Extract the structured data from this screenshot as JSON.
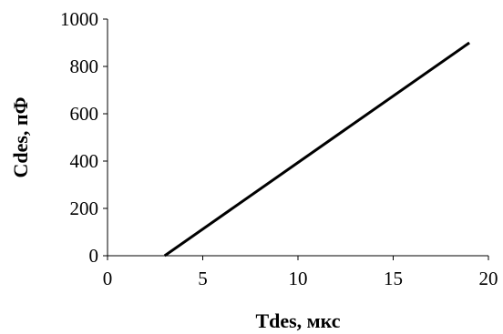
{
  "chart_data": {
    "type": "line",
    "xlabel": "Tdes, мкс",
    "ylabel": "Cdes, пФ",
    "xlim": [
      0,
      20
    ],
    "ylim": [
      0,
      1000
    ],
    "xticks": [
      0,
      5,
      10,
      15,
      20
    ],
    "yticks": [
      0,
      200,
      400,
      600,
      800,
      1000
    ],
    "grid": false,
    "legend": "none",
    "series": [
      {
        "x": [
          3,
          19
        ],
        "y": [
          0,
          900
        ],
        "color": "#000000"
      }
    ]
  }
}
